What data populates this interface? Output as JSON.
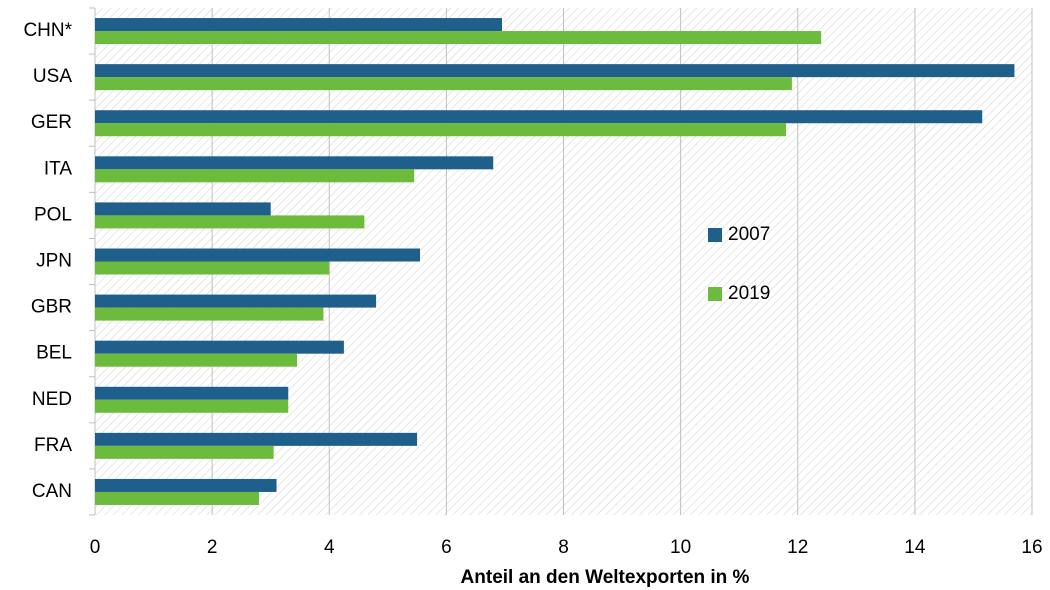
{
  "chart_data": {
    "type": "barh",
    "xlabel": "Anteil an den Weltexporten in %",
    "categories": [
      "CHN*",
      "USA",
      "GER",
      "ITA",
      "POL",
      "JPN",
      "GBR",
      "BEL",
      "NED",
      "FRA",
      "CAN"
    ],
    "series": [
      {
        "name": "2007",
        "color": "#1f5f8b",
        "values": [
          6.95,
          15.7,
          15.15,
          6.8,
          3.0,
          5.55,
          4.8,
          4.25,
          3.3,
          5.5,
          3.1
        ]
      },
      {
        "name": "2019",
        "color": "#6cbb3c",
        "values": [
          12.4,
          11.9,
          11.8,
          5.45,
          4.6,
          4.0,
          3.9,
          3.45,
          3.3,
          3.05,
          2.8
        ]
      }
    ],
    "xlim": [
      0,
      16
    ],
    "xticks": [
      0,
      2,
      4,
      6,
      8,
      10,
      12,
      14,
      16
    ],
    "grid": true
  }
}
